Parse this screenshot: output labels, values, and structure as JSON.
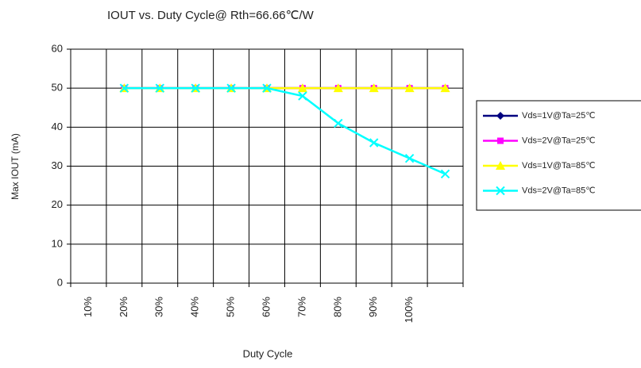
{
  "chart_data": {
    "type": "line",
    "title": "IOUT vs. Duty Cycle@ Rth=66.66℃/W",
    "x_label": "Duty Cycle",
    "y_label": "Max IOUT (mA)",
    "categories": [
      "10%",
      "20%",
      "30%",
      "40%",
      "50%",
      "60%",
      "70%",
      "80%",
      "90%",
      "100%",
      null
    ],
    "series": [
      {
        "name": "Vds=1V@Ta=25℃",
        "color": "#000080",
        "marker": "diamond",
        "values": [
          null,
          50,
          50,
          50,
          50,
          50,
          50,
          50,
          50,
          50,
          50
        ]
      },
      {
        "name": "Vds=2V@Ta=25℃",
        "color": "#ff00ff",
        "marker": "square",
        "values": [
          null,
          50,
          50,
          50,
          50,
          50,
          50,
          50,
          50,
          50,
          50
        ]
      },
      {
        "name": "Vds=1V@Ta=85℃",
        "color": "#ffff00",
        "marker": "triangle",
        "values": [
          null,
          50,
          50,
          50,
          50,
          50,
          50,
          50,
          50,
          50,
          50
        ]
      },
      {
        "name": "Vds=2V@Ta=85℃",
        "color": "#00ffff",
        "marker": "x",
        "values": [
          null,
          50,
          50,
          50,
          50,
          50,
          48,
          41,
          36,
          32,
          28
        ]
      }
    ],
    "ylim": [
      0,
      60
    ],
    "yticks": [
      0,
      10,
      20,
      30,
      40,
      50,
      60
    ],
    "grid": true,
    "legend": "right"
  }
}
